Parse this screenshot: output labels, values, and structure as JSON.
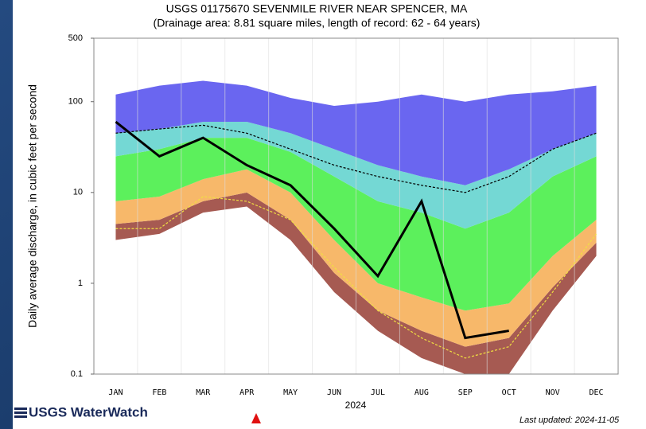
{
  "chart_data": {
    "type": "duration-hydrograph",
    "title": "USGS 01175670 SEVENMILE RIVER NEAR SPENCER, MA",
    "subtitle": "(Drainage area: 8.81 square miles, length of record: 62 - 64 years)",
    "y_label": "Daily average discharge, in cubic feet per second",
    "x_label": "2024",
    "categories": [
      "JAN",
      "FEB",
      "MAR",
      "APR",
      "MAY",
      "JUN",
      "JUL",
      "AUG",
      "SEP",
      "OCT",
      "NOV",
      "DEC"
    ],
    "log_scale": true,
    "ylim": [
      0.1,
      500
    ],
    "yticks": [
      0.1,
      1,
      10,
      100,
      500
    ],
    "series": [
      {
        "values": [
          3,
          3.5,
          6,
          7,
          3,
          0.8,
          0.3,
          0.15,
          0.1,
          0.1,
          0.5,
          2
        ]
      },
      {
        "color": "#a65a52",
        "values": [
          4.5,
          5,
          8,
          10,
          5,
          1.3,
          0.5,
          0.3,
          0.2,
          0.25,
          0.9,
          2.8
        ]
      },
      {
        "color": "#f7b86a",
        "values": [
          8,
          9,
          14,
          18,
          10,
          3,
          1,
          0.7,
          0.5,
          0.6,
          2,
          5
        ]
      },
      {
        "color": "#5cf05c",
        "values": [
          25,
          30,
          40,
          40,
          28,
          15,
          8,
          6,
          4,
          6,
          15,
          25
        ]
      },
      {
        "color": "#74d8d4",
        "values": [
          45,
          50,
          60,
          60,
          45,
          30,
          20,
          15,
          12,
          18,
          30,
          45
        ]
      },
      {
        "color": "#6a66f0",
        "values": [
          120,
          150,
          170,
          150,
          110,
          90,
          100,
          120,
          100,
          120,
          130,
          150
        ]
      }
    ],
    "lines": [
      {
        "color": "#f0e040",
        "dash": true,
        "values": [
          4,
          4,
          9,
          8,
          5,
          1.5,
          0.5,
          0.25,
          0.15,
          0.2,
          0.8,
          3.5
        ]
      },
      {
        "color": "#000000",
        "dash": true,
        "values": [
          45,
          50,
          55,
          45,
          30,
          20,
          15,
          12,
          10,
          15,
          30,
          45
        ]
      },
      {
        "color": "#000000",
        "dash": false,
        "values": [
          60,
          25,
          40,
          20,
          12,
          4,
          1.2,
          8,
          0.25,
          0.3,
          null,
          null
        ]
      }
    ],
    "logo": "USGS WaterWatch",
    "updated": "Last updated: 2024-11-05"
  }
}
